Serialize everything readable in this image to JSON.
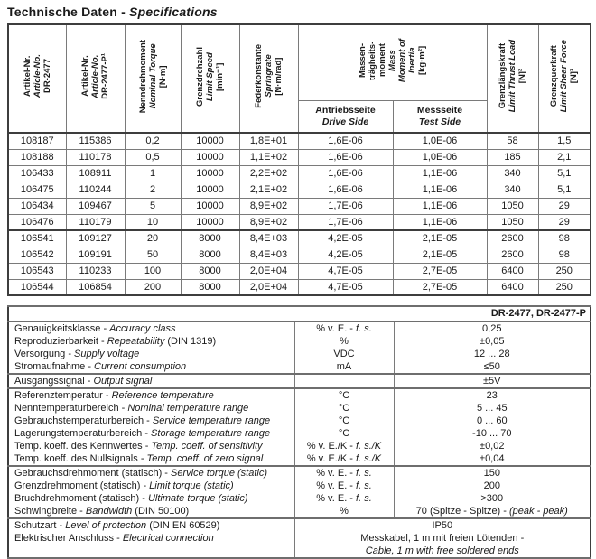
{
  "colors": {
    "background": "#ffffff",
    "text": "#1a1a1a",
    "border_thin": "#7a7a7a",
    "border_thick": "#3d3d3d"
  },
  "title": {
    "de": "Technische Daten",
    "sep": " - ",
    "en": "Specifications"
  },
  "spec_table": {
    "columns": [
      {
        "id": "article-no-dr2477",
        "lines": [
          {
            "t": "Artikel-Nr.",
            "i": false
          },
          {
            "t": "Article-No.",
            "i": true
          },
          {
            "t": "DR-2477",
            "i": false
          }
        ]
      },
      {
        "id": "article-no-dr2477p",
        "lines": [
          {
            "t": "Artikel-Nr.",
            "i": false
          },
          {
            "t": "Article-No.",
            "i": true
          },
          {
            "t": "DR-2477-P¹",
            "i": false
          }
        ]
      },
      {
        "id": "nominal-torque",
        "lines": [
          {
            "t": "Nenndrehmoment",
            "i": false
          },
          {
            "t": "Nominal Torque",
            "i": true
          },
          {
            "t": "[N·m]",
            "i": false
          }
        ]
      },
      {
        "id": "limit-speed",
        "lines": [
          {
            "t": "Grenzdrehzahl",
            "i": false
          },
          {
            "t": "Limit Speed",
            "i": true
          },
          {
            "t": "[min⁻¹]",
            "i": false
          }
        ]
      },
      {
        "id": "springrate",
        "lines": [
          {
            "t": "Federkonstante",
            "i": false
          },
          {
            "t": "Springrate",
            "i": true
          },
          {
            "t": "[N·m/rad]",
            "i": false
          }
        ]
      },
      {
        "id": "mass-moment-of-inertia",
        "lines": [
          {
            "t": "Massen-",
            "i": false
          },
          {
            "t": "trägheits-",
            "i": false
          },
          {
            "t": "moment",
            "i": false
          },
          {
            "t": "Mass",
            "i": true
          },
          {
            "t": "Moment of",
            "i": true
          },
          {
            "t": "Inertia",
            "i": true
          },
          {
            "t": "[kg·m²]",
            "i": false
          }
        ],
        "subcolumns": [
          {
            "id": "drive-side",
            "lines": [
              {
                "t": "Antriebsseite",
                "i": false
              },
              {
                "t": "Drive Side",
                "i": true
              }
            ]
          },
          {
            "id": "test-side",
            "lines": [
              {
                "t": "Messseite",
                "i": false
              },
              {
                "t": "Test Side",
                "i": true
              }
            ]
          }
        ]
      },
      {
        "id": "limit-thrust-load",
        "lines": [
          {
            "t": "Grenzlängskraft",
            "i": false
          },
          {
            "t": "Limit Thrust Load",
            "i": true
          },
          {
            "t": "[N]²",
            "i": false
          }
        ]
      },
      {
        "id": "limit-shear-force",
        "lines": [
          {
            "t": "Grenzquerkraft",
            "i": false
          },
          {
            "t": "Limit Shear Force",
            "i": true
          },
          {
            "t": "[N]³",
            "i": false
          }
        ]
      }
    ],
    "rows": [
      [
        "108187",
        "115386",
        "0,2",
        "10000",
        "1,8E+01",
        "1,6E-06",
        "1,0E-06",
        "58",
        "1,5"
      ],
      [
        "108188",
        "110178",
        "0,5",
        "10000",
        "1,1E+02",
        "1,6E-06",
        "1,0E-06",
        "185",
        "2,1"
      ],
      [
        "106433",
        "108911",
        "1",
        "10000",
        "2,2E+02",
        "1,6E-06",
        "1,1E-06",
        "340",
        "5,1"
      ],
      [
        "106475",
        "110244",
        "2",
        "10000",
        "2,1E+02",
        "1,6E-06",
        "1,1E-06",
        "340",
        "5,1"
      ],
      [
        "106434",
        "109467",
        "5",
        "10000",
        "8,9E+02",
        "1,7E-06",
        "1,1E-06",
        "1050",
        "29"
      ],
      [
        "106476",
        "110179",
        "10",
        "10000",
        "8,9E+02",
        "1,7E-06",
        "1,1E-06",
        "1050",
        "29"
      ],
      [
        "106541",
        "109127",
        "20",
        "8000",
        "8,4E+03",
        "4,2E-05",
        "2,1E-05",
        "2600",
        "98"
      ],
      [
        "106542",
        "109191",
        "50",
        "8000",
        "8,4E+03",
        "4,2E-05",
        "2,1E-05",
        "2600",
        "98"
      ],
      [
        "106543",
        "110233",
        "100",
        "8000",
        "2,0E+04",
        "4,7E-05",
        "2,7E-05",
        "6400",
        "250"
      ],
      [
        "106544",
        "106854",
        "200",
        "8000",
        "2,0E+04",
        "4,7E-05",
        "2,7E-05",
        "6400",
        "250"
      ]
    ],
    "thick_after_row": 6
  },
  "detail_table": {
    "header": "DR-2477, DR-2477-P",
    "groups": [
      {
        "rows": [
          {
            "label": {
              "de": "Genauigkeitsklasse",
              "en": "Accuracy class"
            },
            "unit": {
              "de": "% v. E.",
              "en": "f. s."
            },
            "value": "0,25"
          },
          {
            "label": {
              "de": "Reproduzierbarkeit",
              "en": "Repeatability",
              "note": "(DIN 1319)"
            },
            "unit": {
              "de": "%"
            },
            "value": "±0,05"
          },
          {
            "label": {
              "de": "Versorgung",
              "en": "Supply voltage"
            },
            "unit": {
              "de": "VDC"
            },
            "value": "12 ... 28"
          },
          {
            "label": {
              "de": "Stromaufnahme",
              "en": "Current consumption"
            },
            "unit": {
              "de": "mA"
            },
            "value": "≤50"
          }
        ]
      },
      {
        "rows": [
          {
            "label": {
              "de": "Ausgangssignal",
              "en": "Output signal"
            },
            "unit": null,
            "value": "±5V"
          }
        ]
      },
      {
        "rows": [
          {
            "label": {
              "de": "Referenztemperatur",
              "en": "Reference temperature"
            },
            "unit": {
              "de": "°C"
            },
            "value": "23"
          },
          {
            "label": {
              "de": "Nenntemperaturbereich",
              "en": "Nominal temperature range"
            },
            "unit": {
              "de": "°C"
            },
            "value": "5 ... 45"
          },
          {
            "label": {
              "de": "Gebrauchstemperaturbereich",
              "en": "Service temperature range"
            },
            "unit": {
              "de": "°C"
            },
            "value": "0 ... 60"
          },
          {
            "label": {
              "de": "Lagerungstemperaturbereich",
              "en": "Storage temperature range"
            },
            "unit": {
              "de": "°C"
            },
            "value": "-10 ... 70"
          },
          {
            "label": {
              "de": "Temp. koeff. des Kennwertes",
              "en": "Temp. coeff. of sensitivity"
            },
            "unit": {
              "de": "% v. E./K",
              "en": "f. s./K"
            },
            "value": "±0,02"
          },
          {
            "label": {
              "de": "Temp. koeff. des Nullsignals",
              "en": "Temp. coeff. of zero signal"
            },
            "unit": {
              "de": "% v. E./K",
              "en": "f. s./K"
            },
            "value": "±0,04"
          }
        ]
      },
      {
        "rows": [
          {
            "label": {
              "de": "Gebrauchsdrehmoment (statisch)",
              "en": "Service torque (static)"
            },
            "unit": {
              "de": "% v. E.",
              "en": "f. s."
            },
            "value": "150"
          },
          {
            "label": {
              "de": "Grenzdrehmoment (statisch)",
              "en": "Limit torque (static)"
            },
            "unit": {
              "de": "% v. E.",
              "en": "f. s."
            },
            "value": "200"
          },
          {
            "label": {
              "de": "Bruchdrehmoment (statisch)",
              "en": "Ultimate torque (static)"
            },
            "unit": {
              "de": "% v. E.",
              "en": "f. s."
            },
            "value": ">300"
          },
          {
            "label": {
              "de": "Schwingbreite",
              "en": "Bandwidth",
              "note": "(DIN 50100)"
            },
            "unit": {
              "de": "%"
            },
            "value": {
              "de": "70 (Spitze - Spitze)",
              "en": "(peak - peak)"
            }
          }
        ]
      },
      {
        "labels": [
          {
            "de": "Schutzart",
            "en": "Level of protection",
            "note": "(DIN EN 60529)"
          },
          {
            "de": "Elektrischer Anschluss",
            "en": "Electrical connection"
          }
        ],
        "merged_value_lines": [
          {
            "t": "IP50",
            "i": false
          },
          {
            "t": "Messkabel, 1 m mit freien Lötenden -",
            "i": false
          },
          {
            "t": "Cable, 1 m with free soldered ends",
            "i": true
          }
        ]
      }
    ]
  }
}
